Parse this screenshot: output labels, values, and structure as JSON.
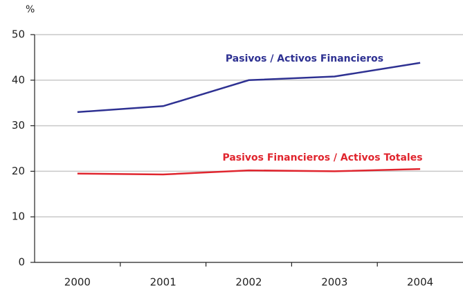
{
  "chart_data": {
    "type": "line",
    "ylabel": "%",
    "categories": [
      "2000",
      "2001",
      "2002",
      "2003",
      "2004"
    ],
    "series": [
      {
        "name": "Pasivos / Activos Financieros",
        "color": "#2e3192",
        "values": [
          33.0,
          34.3,
          40.0,
          40.8,
          43.8
        ]
      },
      {
        "name": "Pasivos Financieros / Activos Totales",
        "color": "#e0252e",
        "values": [
          19.5,
          19.3,
          20.2,
          20.0,
          20.5
        ]
      }
    ],
    "ylim": [
      0,
      50
    ],
    "yticks": [
      0,
      10,
      20,
      30,
      40,
      50
    ],
    "grid": true
  }
}
